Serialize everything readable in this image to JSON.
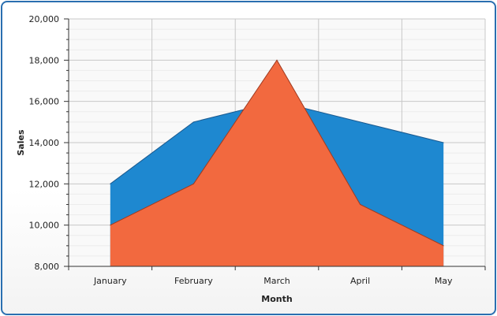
{
  "chart_data": {
    "type": "area",
    "categories": [
      "January",
      "February",
      "March",
      "April",
      "May"
    ],
    "series": [
      {
        "values": [
          12000,
          15000,
          16000,
          15000,
          14000
        ],
        "color": "#1e88d0"
      },
      {
        "values": [
          10000,
          12000,
          18000,
          11000,
          9000
        ],
        "color": "#f2693f"
      }
    ],
    "xlabel": "Month",
    "ylabel": "Sales",
    "ylim": [
      8000,
      20000
    ],
    "ytick_step": 2000,
    "ytick_labels": [
      "8,000",
      "10,000",
      "12,000",
      "14,000",
      "16,000",
      "18,000",
      "20,000"
    ],
    "grid": true,
    "legend": "none"
  }
}
